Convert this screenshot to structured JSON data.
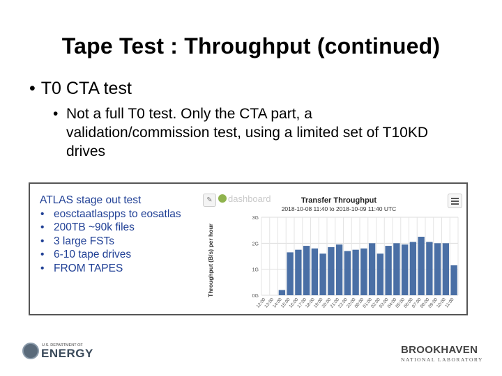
{
  "slide": {
    "title": "Tape Test : Throughput (continued)",
    "bullet": "T0 CTA test",
    "subbullet": "Not a full T0 test. Only the CTA part, a validation/commission test, using a limited set of T10KD drives"
  },
  "atlas_box": {
    "title": "ATLAS stage out test",
    "items": [
      "eosctaatlaspps to eosatlas",
      "200TB ~90k files",
      "3 large FSTs",
      "6-10 tape drives",
      "FROM TAPES"
    ]
  },
  "dashboard": {
    "logo_text": "dashboard",
    "edit_icon": "pencil-icon",
    "menu_icon": "hamburger-menu-icon"
  },
  "chart_data": {
    "type": "bar",
    "title": "Transfer Throughput",
    "subtitle": "2018-10-08 11:40 to 2018-10-09 11:40 UTC",
    "ylabel": "Throughput (B/s) per hour",
    "xlabel": "",
    "yticks": [
      "0G",
      "1G",
      "2G",
      "3G"
    ],
    "ylim": [
      0,
      3
    ],
    "bar_color": "#4a6fa5",
    "grid": true,
    "categories": [
      "12:00",
      "13:00",
      "14:00",
      "15:00",
      "16:00",
      "17:00",
      "18:00",
      "19:00",
      "20:00",
      "21:00",
      "22:00",
      "23:00",
      "00:00",
      "01:00",
      "02:00",
      "03:00",
      "04:00",
      "05:00",
      "06:00",
      "07:00",
      "08:00",
      "09:00",
      "10:00",
      "11:00"
    ],
    "values": [
      0,
      0,
      0.2,
      1.65,
      1.75,
      1.9,
      1.8,
      1.6,
      1.85,
      1.95,
      1.7,
      1.75,
      1.8,
      2.0,
      1.6,
      1.9,
      2.0,
      1.95,
      2.05,
      2.25,
      2.05,
      2.0,
      2.0,
      1.15
    ]
  },
  "footer": {
    "doe_small": "U.S. DEPARTMENT OF",
    "doe_big": "ENERGY",
    "bnl_big": "BROOKHAVEN",
    "bnl_small": "NATIONAL LABORATORY"
  }
}
